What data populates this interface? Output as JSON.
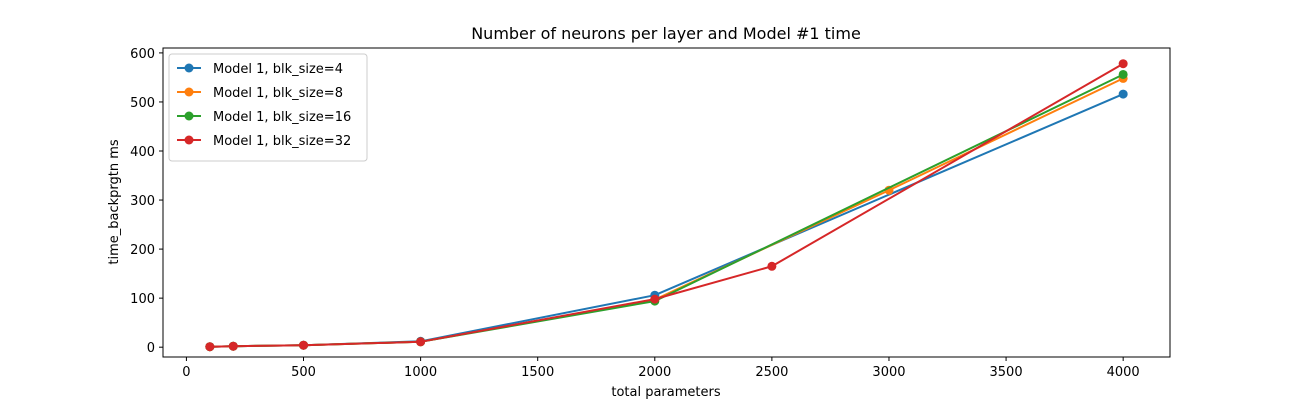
{
  "chart_data": {
    "type": "line",
    "title": "Number of neurons per layer and Model #1 time",
    "xlabel": "total parameters",
    "ylabel": "time_backprgtn ms",
    "xlim": [
      -100,
      4200
    ],
    "ylim": [
      -20,
      610
    ],
    "xticks": [
      0,
      500,
      1000,
      1500,
      2000,
      2500,
      3000,
      3500,
      4000
    ],
    "yticks": [
      0,
      100,
      200,
      300,
      400,
      500,
      600
    ],
    "grid": false,
    "legend_position": "top-left",
    "series": [
      {
        "name": "Model 1, blk_size=4",
        "color": "#1f77b4",
        "x": [
          100,
          200,
          500,
          1000,
          2000,
          4000
        ],
        "y": [
          1,
          2,
          4,
          12,
          106,
          516
        ]
      },
      {
        "name": "Model 1, blk_size=8",
        "color": "#ff7f0e",
        "x": [
          100,
          200,
          500,
          1000,
          2000,
          3000,
          4000
        ],
        "y": [
          1,
          2,
          4,
          11,
          97,
          320,
          548
        ]
      },
      {
        "name": "Model 1, blk_size=16",
        "color": "#2ca02c",
        "x": [
          100,
          200,
          500,
          1000,
          2000,
          4000
        ],
        "y": [
          1,
          2,
          4,
          11,
          94,
          556
        ]
      },
      {
        "name": "Model 1, blk_size=32",
        "color": "#d62728",
        "x": [
          100,
          200,
          500,
          1000,
          2000,
          2500,
          4000
        ],
        "y": [
          1,
          2,
          4,
          11,
          98,
          165,
          578
        ]
      }
    ]
  }
}
